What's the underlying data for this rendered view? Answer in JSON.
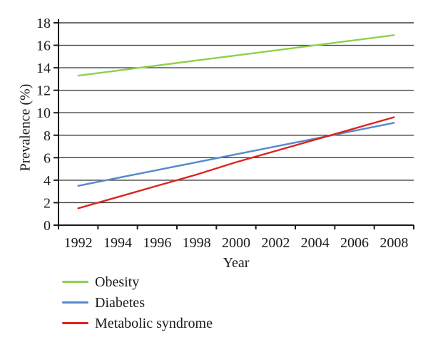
{
  "chart_data": {
    "type": "line",
    "title": "",
    "xlabel": "Year",
    "ylabel": "Prevalence (%)",
    "categories": [
      "1992",
      "1994",
      "1996",
      "1998",
      "2000",
      "2002",
      "2004",
      "2006",
      "2008"
    ],
    "ylim": [
      0,
      18
    ],
    "ytick_step": 2,
    "grid": "horizontal",
    "legend_position": "bottom-left",
    "series": [
      {
        "name": "Obesity",
        "color": "#8fd04c",
        "values": [
          13.3,
          13.75,
          14.2,
          14.65,
          15.1,
          15.55,
          16.0,
          16.45,
          16.9
        ]
      },
      {
        "name": "Diabetes",
        "color": "#5589ca",
        "values": [
          3.5,
          4.2,
          4.9,
          5.6,
          6.3,
          7.0,
          7.7,
          8.4,
          9.1
        ]
      },
      {
        "name": "Metabolic syndrome",
        "color": "#dc251c",
        "values": [
          1.5,
          2.5,
          3.5,
          4.5,
          5.6,
          6.6,
          7.6,
          8.6,
          9.6
        ]
      }
    ],
    "colors": {
      "axis": "#1a1a1a",
      "grid": "#3d3d3d",
      "text": "#1a1a1a",
      "background": "#ffffff"
    }
  }
}
